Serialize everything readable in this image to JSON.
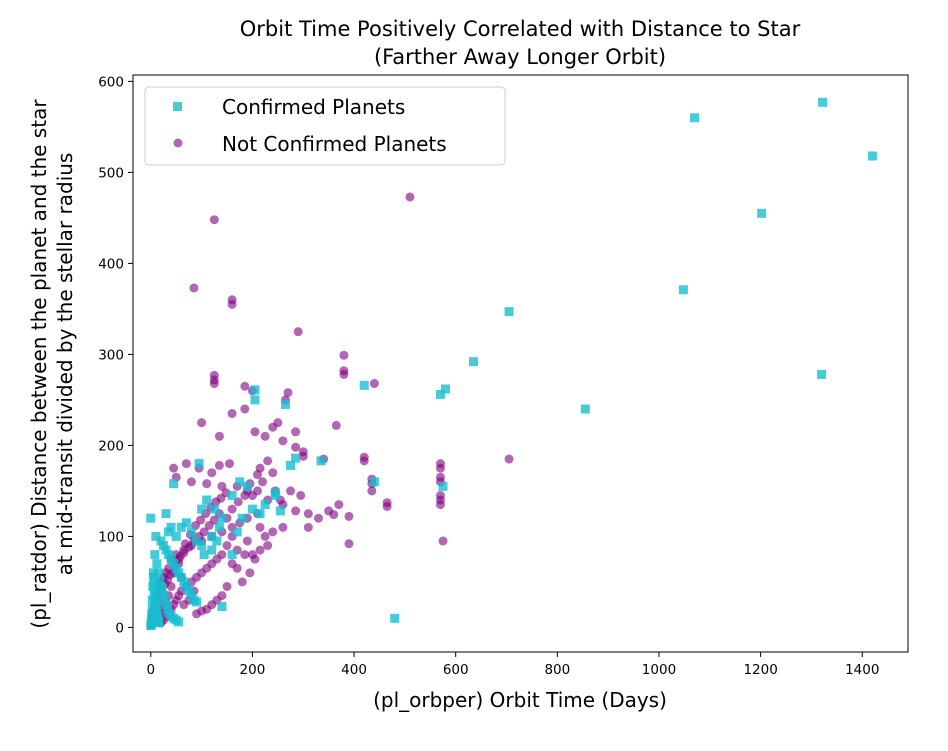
{
  "chart_data": {
    "type": "scatter",
    "title": "Orbit Time Positively Correlated with Distance to Star",
    "subtitle": "(Farther Away Longer Orbit)",
    "xlabel": "(pl_orbper) Orbit Time (Days)",
    "ylabel": "(pl_ratdor) Distance between the planet and the star",
    "ylabel2": "at mid-transit divided by the stellar radius",
    "xlim": [
      -35,
      1490
    ],
    "ylim": [
      -27,
      607
    ],
    "x_ticks": [
      0,
      200,
      400,
      600,
      800,
      1000,
      1200,
      1400
    ],
    "y_ticks": [
      0,
      100,
      200,
      300,
      400,
      500,
      600
    ],
    "x_tick_labels": [
      "0",
      "200",
      "400",
      "600",
      "800",
      "1000",
      "1200",
      "1400"
    ],
    "y_tick_labels": [
      "0",
      "100",
      "200",
      "300",
      "400",
      "500",
      "600"
    ],
    "legend": {
      "placement": "upper-left",
      "entries": [
        "Confirmed Planets",
        "Not Confirmed Planets"
      ]
    },
    "grid": false,
    "series": [
      {
        "name": "Not Confirmed Planets",
        "marker": "circle",
        "color": "#800080",
        "alpha": 0.6,
        "points": [
          [
            125,
            448
          ],
          [
            510,
            473
          ],
          [
            85,
            373
          ],
          [
            160,
            360
          ],
          [
            160,
            355
          ],
          [
            290,
            325
          ],
          [
            380,
            299
          ],
          [
            380,
            282
          ],
          [
            380,
            278
          ],
          [
            440,
            268
          ],
          [
            125,
            277
          ],
          [
            125,
            272
          ],
          [
            125,
            268
          ],
          [
            185,
            265
          ],
          [
            200,
            260
          ],
          [
            270,
            258
          ],
          [
            265,
            250
          ],
          [
            250,
            225
          ],
          [
            240,
            220
          ],
          [
            185,
            240
          ],
          [
            160,
            235
          ],
          [
            365,
            222
          ],
          [
            285,
            215
          ],
          [
            205,
            215
          ],
          [
            100,
            225
          ],
          [
            225,
            210
          ],
          [
            135,
            210
          ],
          [
            260,
            205
          ],
          [
            285,
            198
          ],
          [
            300,
            193
          ],
          [
            300,
            188
          ],
          [
            340,
            185
          ],
          [
            420,
            187
          ],
          [
            420,
            183
          ],
          [
            570,
            180
          ],
          [
            570,
            175
          ],
          [
            705,
            185
          ],
          [
            435,
            163
          ],
          [
            435,
            158
          ],
          [
            435,
            150
          ],
          [
            570,
            165
          ],
          [
            570,
            160
          ],
          [
            570,
            145
          ],
          [
            570,
            140
          ],
          [
            570,
            135
          ],
          [
            575,
            95
          ],
          [
            390,
            92
          ],
          [
            465,
            137
          ],
          [
            465,
            133
          ],
          [
            370,
            135
          ],
          [
            350,
            128
          ],
          [
            360,
            124
          ],
          [
            390,
            122
          ],
          [
            230,
            183
          ],
          [
            215,
            175
          ],
          [
            210,
            168
          ],
          [
            240,
            170
          ],
          [
            155,
            180
          ],
          [
            135,
            178
          ],
          [
            120,
            170
          ],
          [
            95,
            175
          ],
          [
            70,
            180
          ],
          [
            45,
            175
          ],
          [
            50,
            165
          ],
          [
            80,
            160
          ],
          [
            110,
            158
          ],
          [
            140,
            155
          ],
          [
            170,
            155
          ],
          [
            190,
            150
          ],
          [
            200,
            145
          ],
          [
            230,
            140
          ],
          [
            260,
            135
          ],
          [
            285,
            128
          ],
          [
            310,
            125
          ],
          [
            330,
            120
          ],
          [
            210,
            125
          ],
          [
            190,
            120
          ],
          [
            175,
            115
          ],
          [
            160,
            110
          ],
          [
            140,
            105
          ],
          [
            120,
            100
          ],
          [
            100,
            95
          ],
          [
            80,
            90
          ],
          [
            65,
            85
          ],
          [
            50,
            80
          ],
          [
            40,
            75
          ],
          [
            35,
            65
          ],
          [
            30,
            60
          ],
          [
            25,
            55
          ],
          [
            20,
            50
          ],
          [
            15,
            45
          ],
          [
            12,
            38
          ],
          [
            10,
            32
          ],
          [
            8,
            26
          ],
          [
            6,
            20
          ],
          [
            4,
            14
          ],
          [
            3,
            10
          ],
          [
            2,
            6
          ],
          [
            1,
            3
          ],
          [
            160,
            100
          ],
          [
            150,
            90
          ],
          [
            140,
            80
          ],
          [
            130,
            75
          ],
          [
            120,
            70
          ],
          [
            110,
            65
          ],
          [
            100,
            60
          ],
          [
            90,
            55
          ],
          [
            80,
            50
          ],
          [
            70,
            45
          ],
          [
            60,
            40
          ],
          [
            55,
            35
          ],
          [
            50,
            30
          ],
          [
            45,
            25
          ],
          [
            40,
            20
          ],
          [
            35,
            15
          ],
          [
            30,
            12
          ],
          [
            25,
            8
          ],
          [
            20,
            5
          ],
          [
            190,
            95
          ],
          [
            200,
            80
          ],
          [
            195,
            60
          ],
          [
            180,
            50
          ],
          [
            170,
            65
          ],
          [
            160,
            70
          ],
          [
            150,
            45
          ],
          [
            140,
            35
          ],
          [
            130,
            30
          ],
          [
            120,
            25
          ],
          [
            110,
            20
          ],
          [
            100,
            18
          ],
          [
            90,
            15
          ],
          [
            85,
            40
          ],
          [
            75,
            30
          ],
          [
            65,
            25
          ],
          [
            60,
            55
          ],
          [
            55,
            70
          ],
          [
            45,
            60
          ],
          [
            40,
            45
          ],
          [
            35,
            35
          ],
          [
            30,
            28
          ],
          [
            25,
            22
          ],
          [
            20,
            18
          ],
          [
            15,
            14
          ],
          [
            10,
            10
          ],
          [
            5,
            5
          ],
          [
            18,
            30
          ],
          [
            22,
            40
          ],
          [
            28,
            48
          ],
          [
            33,
            52
          ],
          [
            38,
            58
          ],
          [
            48,
            68
          ],
          [
            58,
            78
          ],
          [
            68,
            92
          ],
          [
            78,
            102
          ],
          [
            88,
            112
          ],
          [
            98,
            118
          ],
          [
            108,
            125
          ],
          [
            118,
            132
          ],
          [
            128,
            138
          ],
          [
            138,
            142
          ],
          [
            148,
            148
          ],
          [
            160,
            130
          ],
          [
            172,
            138
          ],
          [
            185,
            145
          ],
          [
            195,
            158
          ],
          [
            210,
            150
          ],
          [
            220,
            160
          ],
          [
            245,
            150
          ],
          [
            255,
            140
          ],
          [
            275,
            150
          ],
          [
            295,
            145
          ],
          [
            310,
            110
          ],
          [
            260,
            110
          ],
          [
            240,
            105
          ],
          [
            225,
            100
          ],
          [
            215,
            110
          ],
          [
            230,
            90
          ],
          [
            215,
            85
          ],
          [
            205,
            75
          ],
          [
            185,
            80
          ],
          [
            170,
            85
          ],
          [
            150,
            120
          ],
          [
            135,
            125
          ],
          [
            125,
            118
          ],
          [
            115,
            112
          ],
          [
            105,
            105
          ],
          [
            95,
            100
          ],
          [
            85,
            95
          ],
          [
            75,
            88
          ],
          [
            65,
            82
          ],
          [
            55,
            75
          ]
        ]
      },
      {
        "name": "Confirmed Planets",
        "marker": "square",
        "color": "#17BECF",
        "alpha": 0.8,
        "points": [
          [
            1322,
            577
          ],
          [
            1420,
            518
          ],
          [
            1070,
            560
          ],
          [
            1202,
            455
          ],
          [
            1048,
            371
          ],
          [
            705,
            347
          ],
          [
            1320,
            278
          ],
          [
            635,
            292
          ],
          [
            580,
            262
          ],
          [
            570,
            256
          ],
          [
            855,
            240
          ],
          [
            480,
            10
          ],
          [
            420,
            266
          ],
          [
            440,
            160
          ],
          [
            335,
            183
          ],
          [
            285,
            186
          ],
          [
            275,
            178
          ],
          [
            265,
            245
          ],
          [
            205,
            261
          ],
          [
            205,
            250
          ],
          [
            255,
            128
          ],
          [
            245,
            148
          ],
          [
            245,
            145
          ],
          [
            190,
            155
          ],
          [
            160,
            145
          ],
          [
            140,
            120
          ],
          [
            135,
            110
          ],
          [
            120,
            100
          ],
          [
            95,
            180
          ],
          [
            45,
            158
          ],
          [
            30,
            125
          ],
          [
            0,
            120
          ],
          [
            140,
            23
          ],
          [
            575,
            155
          ],
          [
            10,
            100
          ],
          [
            20,
            95
          ],
          [
            25,
            90
          ],
          [
            30,
            85
          ],
          [
            35,
            80
          ],
          [
            40,
            75
          ],
          [
            45,
            70
          ],
          [
            50,
            65
          ],
          [
            55,
            60
          ],
          [
            60,
            55
          ],
          [
            65,
            50
          ],
          [
            70,
            45
          ],
          [
            75,
            40
          ],
          [
            80,
            35
          ],
          [
            85,
            30
          ],
          [
            90,
            28
          ],
          [
            8,
            80
          ],
          [
            12,
            70
          ],
          [
            15,
            60
          ],
          [
            18,
            50
          ],
          [
            20,
            45
          ],
          [
            22,
            40
          ],
          [
            25,
            35
          ],
          [
            28,
            30
          ],
          [
            30,
            25
          ],
          [
            33,
            20
          ],
          [
            36,
            15
          ],
          [
            40,
            12
          ],
          [
            45,
            10
          ],
          [
            50,
            8
          ],
          [
            55,
            6
          ],
          [
            5,
            60
          ],
          [
            6,
            50
          ],
          [
            7,
            40
          ],
          [
            8,
            35
          ],
          [
            9,
            30
          ],
          [
            10,
            25
          ],
          [
            11,
            20
          ],
          [
            12,
            16
          ],
          [
            13,
            12
          ],
          [
            14,
            9
          ],
          [
            15,
            7
          ],
          [
            16,
            5
          ],
          [
            3,
            30
          ],
          [
            3,
            20
          ],
          [
            2,
            15
          ],
          [
            2,
            10
          ],
          [
            1,
            6
          ],
          [
            1,
            3
          ],
          [
            0,
            2
          ],
          [
            4,
            45
          ],
          [
            6,
            55
          ],
          [
            100,
            130
          ],
          [
            110,
            140
          ],
          [
            60,
            110
          ],
          [
            70,
            115
          ],
          [
            80,
            105
          ],
          [
            90,
            95
          ],
          [
            100,
            90
          ],
          [
            105,
            80
          ],
          [
            50,
            100
          ],
          [
            40,
            110
          ],
          [
            35,
            105
          ],
          [
            120,
            85
          ],
          [
            125,
            130
          ],
          [
            130,
            95
          ],
          [
            160,
            80
          ],
          [
            175,
            160
          ],
          [
            200,
            130
          ],
          [
            215,
            125
          ],
          [
            225,
            135
          ],
          [
            180,
            120
          ],
          [
            170,
            105
          ]
        ]
      }
    ]
  }
}
